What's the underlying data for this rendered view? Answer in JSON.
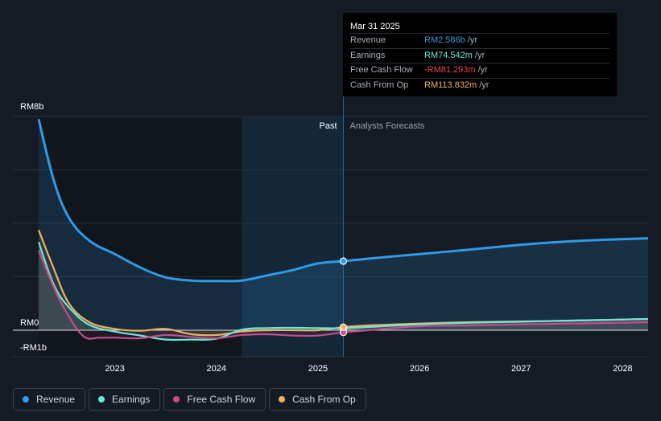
{
  "tooltip": {
    "date": "Mar 31 2025",
    "rows": [
      {
        "label": "Revenue",
        "value": "RM2.586b",
        "unit": "/yr",
        "color": "#2f9be8"
      },
      {
        "label": "Earnings",
        "value": "RM74.542m",
        "unit": "/yr",
        "color": "#6ee7d8"
      },
      {
        "label": "Free Cash Flow",
        "value": "-RM81.293m",
        "unit": "/yr",
        "color": "#e8484e"
      },
      {
        "label": "Cash From Op",
        "value": "RM113.832m",
        "unit": "/yr",
        "color": "#f0b15c"
      }
    ]
  },
  "legend": [
    {
      "label": "Revenue",
      "color": "#2f9be8"
    },
    {
      "label": "Earnings",
      "color": "#6ee7d8"
    },
    {
      "label": "Free Cash Flow",
      "color": "#c94b8c"
    },
    {
      "label": "Cash From Op",
      "color": "#f0b15c"
    }
  ],
  "chart_data": {
    "type": "line",
    "title": "",
    "xlabel": "",
    "ylabel": "",
    "y_unit": "RM billions",
    "ylim": [
      -1,
      8
    ],
    "y_tick_labels": [
      {
        "value": 8,
        "label": "RM8b"
      },
      {
        "value": 0,
        "label": "RM0"
      },
      {
        "value": -1,
        "label": "-RM1b"
      }
    ],
    "x_ticks": [
      2023,
      2024,
      2025,
      2026,
      2027,
      2028
    ],
    "xlim": [
      2022.25,
      2028.25
    ],
    "past_label": "Past",
    "forecast_label": "Analysts Forecasts",
    "past_highlight_start": 2024.25,
    "divider_x": 2025.25,
    "grid": true,
    "legend_position": "bottom",
    "series": [
      {
        "name": "Revenue",
        "color": "#2f9be8",
        "x": [
          2022.25,
          2022.4,
          2022.55,
          2022.75,
          2023.0,
          2023.25,
          2023.5,
          2023.75,
          2024.0,
          2024.25,
          2024.5,
          2024.75,
          2025.0,
          2025.25,
          2025.5,
          2026.0,
          2026.5,
          2027.0,
          2027.5,
          2028.0,
          2028.25
        ],
        "y": [
          7.9,
          5.6,
          4.2,
          3.35,
          2.85,
          2.35,
          1.98,
          1.86,
          1.84,
          1.86,
          2.05,
          2.25,
          2.5,
          2.586,
          2.68,
          2.85,
          3.02,
          3.2,
          3.33,
          3.41,
          3.44
        ]
      },
      {
        "name": "Earnings",
        "color": "#6ee7d8",
        "x": [
          2022.25,
          2022.4,
          2022.55,
          2022.75,
          2023.0,
          2023.25,
          2023.5,
          2023.75,
          2024.0,
          2024.25,
          2024.5,
          2024.75,
          2025.0,
          2025.25,
          2025.5,
          2026.0,
          2026.5,
          2027.0,
          2027.5,
          2028.0,
          2028.25
        ],
        "y": [
          3.3,
          1.7,
          0.85,
          0.2,
          -0.05,
          -0.2,
          -0.35,
          -0.35,
          -0.32,
          0.02,
          0.08,
          0.09,
          0.08,
          0.075,
          0.12,
          0.22,
          0.28,
          0.32,
          0.36,
          0.4,
          0.42
        ]
      },
      {
        "name": "Free Cash Flow",
        "color": "#c94b8c",
        "x": [
          2022.25,
          2022.4,
          2022.55,
          2022.7,
          2022.85,
          2023.0,
          2023.25,
          2023.5,
          2023.75,
          2024.0,
          2024.25,
          2024.5,
          2024.75,
          2025.0,
          2025.25,
          2025.5,
          2026.0,
          2026.5,
          2027.0,
          2027.5,
          2028.0,
          2028.25
        ],
        "y": [
          3.0,
          1.6,
          0.5,
          -0.25,
          -0.28,
          -0.28,
          -0.3,
          -0.18,
          -0.25,
          -0.3,
          -0.18,
          -0.15,
          -0.2,
          -0.2,
          -0.081,
          0.0,
          0.15,
          0.18,
          0.22,
          0.25,
          0.28,
          0.3
        ]
      },
      {
        "name": "Cash From Op",
        "color": "#f0b15c",
        "x": [
          2022.25,
          2022.4,
          2022.55,
          2022.75,
          2023.0,
          2023.25,
          2023.5,
          2023.75,
          2024.0,
          2024.25,
          2024.5,
          2024.75,
          2025.0,
          2025.25,
          2025.5,
          2026.0,
          2026.5,
          2027.0,
          2027.5,
          2028.0,
          2028.25
        ],
        "y": [
          3.75,
          2.3,
          1.0,
          0.3,
          0.05,
          -0.02,
          0.05,
          -0.15,
          -0.18,
          -0.05,
          0.0,
          0.0,
          0.0,
          0.114,
          0.18,
          0.25,
          0.3,
          0.33,
          0.36,
          0.4,
          0.42
        ]
      }
    ]
  }
}
